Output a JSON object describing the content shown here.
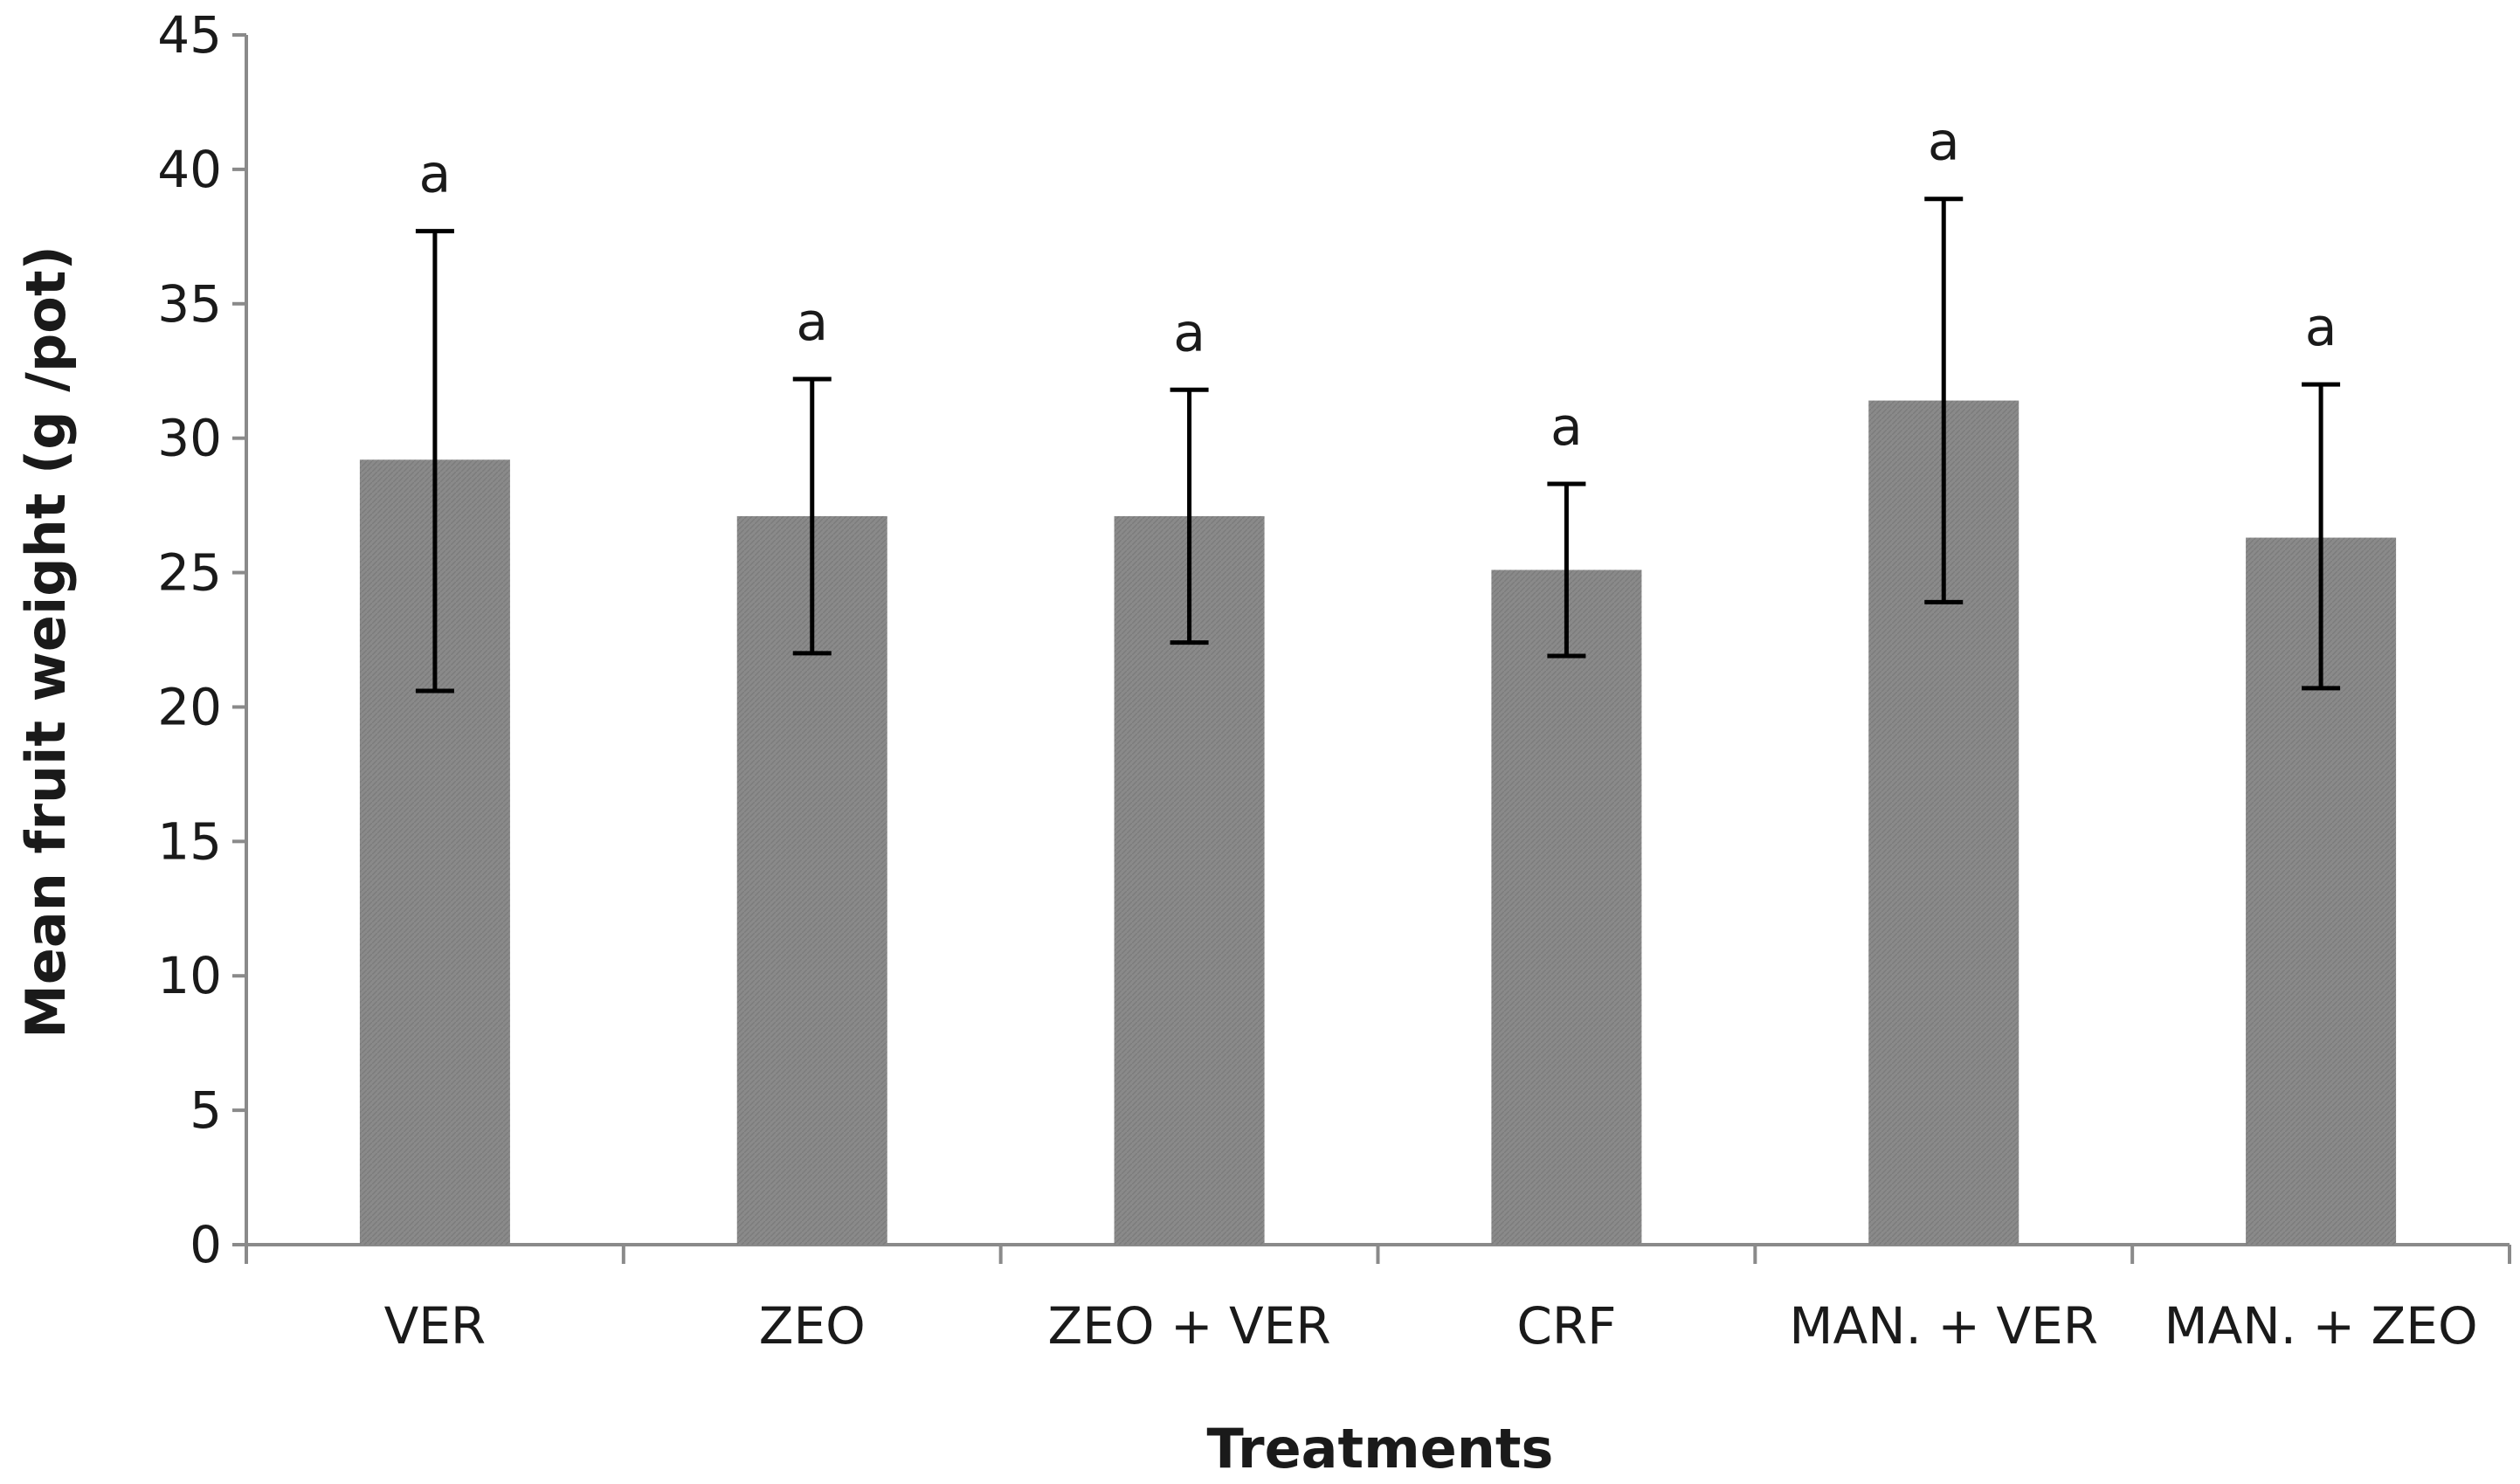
{
  "chart_data": {
    "type": "bar",
    "title": "",
    "xlabel": "Treatments",
    "ylabel": "Mean fruit weight (g /pot)",
    "ylim": [
      0,
      45
    ],
    "yticks": [
      "0",
      "5",
      "10",
      "15",
      "20",
      "25",
      "30",
      "35",
      "40",
      "45"
    ],
    "categories": [
      "VER",
      "ZEO",
      "ZEO + VER",
      "CRF",
      "MAN. + VER",
      "MAN. + ZEO"
    ],
    "values": [
      29.2,
      27.1,
      27.1,
      25.1,
      31.4,
      26.3
    ],
    "error_low": [
      20.6,
      22.0,
      22.4,
      21.9,
      23.9,
      20.7
    ],
    "error_high": [
      37.7,
      32.2,
      31.8,
      28.3,
      38.9,
      32.0
    ],
    "significance": [
      "a",
      "a",
      "a",
      "a",
      "a",
      "a"
    ],
    "colors": {
      "bar": "#878787",
      "axis": "#8a8a8a",
      "error": "#000000"
    },
    "grid": false,
    "legend": "none"
  }
}
